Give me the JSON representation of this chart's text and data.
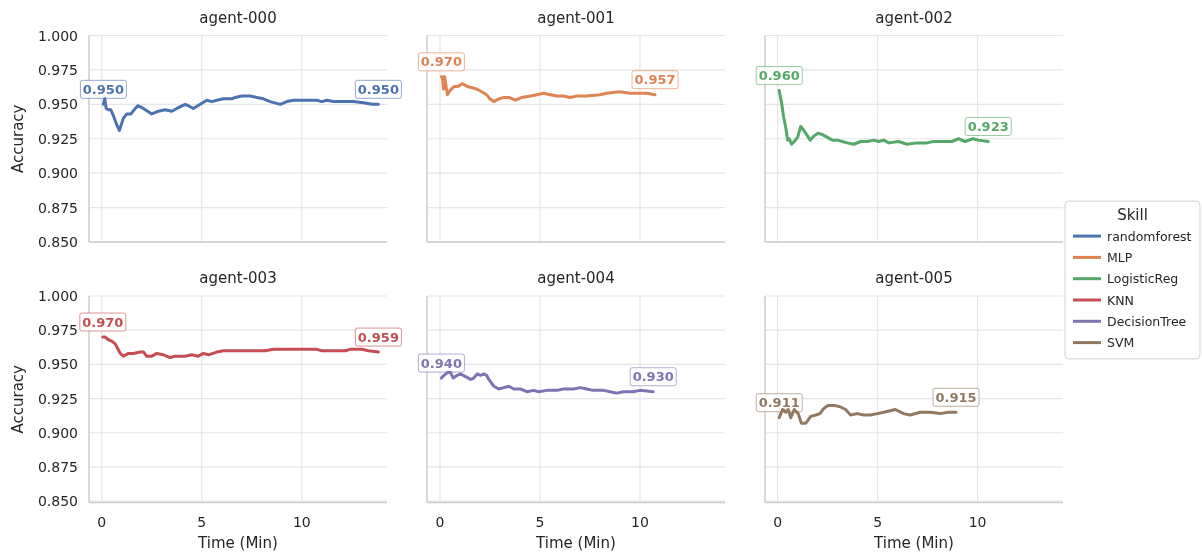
{
  "chart_data": [
    {
      "type": "line",
      "title": "agent-000",
      "ylabel": "Accuracy",
      "xlim": [
        -0.64,
        14.26
      ],
      "ylim": [
        0.85,
        1.0
      ],
      "xticks": [
        0,
        5,
        10
      ],
      "yticks": [
        {
          "value": 0.85,
          "label": "0.850"
        },
        {
          "value": 0.875,
          "label": "0.875"
        },
        {
          "value": 0.9,
          "label": "0.900"
        },
        {
          "value": 0.925,
          "label": "0.925"
        },
        {
          "value": 0.95,
          "label": "0.950"
        },
        {
          "value": 0.975,
          "label": "0.975"
        },
        {
          "value": 1.0,
          "label": "1.000"
        }
      ],
      "grid": true,
      "tick_labels": "y",
      "series": [
        {
          "name": "randomforest",
          "color": "#4c72b0",
          "x": [
            0.08,
            0.15,
            0.22,
            0.33,
            0.45,
            0.6,
            0.75,
            0.88,
            1.08,
            1.25,
            1.45,
            1.62,
            1.8,
            2.08,
            2.5,
            2.83,
            3.17,
            3.5,
            3.75,
            4.17,
            4.33,
            4.58,
            4.92,
            5.25,
            5.5,
            5.75,
            6.08,
            6.5,
            6.67,
            7.0,
            7.42,
            7.75,
            8.08,
            8.42,
            8.92,
            9.25,
            9.58,
            9.92,
            10.75,
            11.0,
            11.25,
            11.58,
            12.0,
            12.58,
            13.17,
            13.5,
            13.83
          ],
          "values": [
            0.95,
            0.954,
            0.947,
            0.946,
            0.946,
            0.941,
            0.935,
            0.931,
            0.94,
            0.943,
            0.943,
            0.946,
            0.949,
            0.947,
            0.943,
            0.945,
            0.946,
            0.945,
            0.947,
            0.95,
            0.949,
            0.947,
            0.95,
            0.953,
            0.952,
            0.953,
            0.954,
            0.954,
            0.955,
            0.956,
            0.956,
            0.955,
            0.954,
            0.952,
            0.95,
            0.952,
            0.953,
            0.953,
            0.953,
            0.952,
            0.953,
            0.952,
            0.952,
            0.952,
            0.951,
            0.95,
            0.95
          ],
          "value_labels": [
            "0.950",
            null,
            null,
            null,
            null,
            null,
            null,
            null,
            null,
            null,
            null,
            null,
            null,
            null,
            null,
            null,
            null,
            null,
            null,
            null,
            null,
            null,
            null,
            null,
            null,
            null,
            null,
            null,
            null,
            null,
            null,
            null,
            null,
            null,
            null,
            null,
            null,
            null,
            null,
            null,
            null,
            null,
            null,
            null,
            null,
            null,
            "0.950"
          ]
        }
      ]
    },
    {
      "type": "line",
      "title": "agent-001",
      "xlim": [
        -0.65,
        14.25
      ],
      "ylim": [
        0.85,
        1.0
      ],
      "xticks": [
        0,
        5,
        10
      ],
      "yticks": [
        0.85,
        0.875,
        0.9,
        0.925,
        0.95,
        0.975,
        1.0
      ],
      "grid": true,
      "tick_labels": false,
      "series": [
        {
          "name": "MLP",
          "color": "#dd8452",
          "x": [
            0.07,
            0.12,
            0.17,
            0.23,
            0.37,
            0.5,
            0.7,
            0.9,
            1.11,
            1.36,
            1.61,
            1.86,
            2.11,
            2.33,
            2.49,
            2.69,
            2.94,
            3.19,
            3.44,
            3.77,
            4.1,
            4.52,
            4.85,
            5.18,
            5.51,
            5.85,
            6.18,
            6.51,
            6.84,
            7.34,
            8.0,
            8.34,
            8.84,
            9.09,
            9.5,
            10.0,
            10.33,
            10.75
          ],
          "values": [
            0.97,
            0.97,
            0.961,
            0.97,
            0.957,
            0.96,
            0.963,
            0.963,
            0.965,
            0.963,
            0.962,
            0.961,
            0.959,
            0.957,
            0.954,
            0.952,
            0.954,
            0.955,
            0.955,
            0.953,
            0.955,
            0.956,
            0.957,
            0.958,
            0.957,
            0.956,
            0.956,
            0.955,
            0.956,
            0.956,
            0.957,
            0.958,
            0.959,
            0.959,
            0.958,
            0.958,
            0.958,
            0.957
          ],
          "value_labels": [
            "0.970",
            null,
            null,
            null,
            null,
            null,
            null,
            null,
            null,
            null,
            null,
            null,
            null,
            null,
            null,
            null,
            null,
            null,
            null,
            null,
            null,
            null,
            null,
            null,
            null,
            null,
            null,
            null,
            null,
            null,
            null,
            null,
            null,
            null,
            null,
            null,
            null,
            "0.957"
          ]
        }
      ]
    },
    {
      "type": "line",
      "title": "agent-002",
      "xlim": [
        -0.63,
        14.27
      ],
      "ylim": [
        0.85,
        1.0
      ],
      "xticks": [
        0,
        5,
        10
      ],
      "yticks": [
        0.85,
        0.875,
        0.9,
        0.925,
        0.95,
        0.975,
        1.0
      ],
      "grid": true,
      "tick_labels": false,
      "legend": "right",
      "legend_title": "Skill",
      "series": [
        {
          "name": "LogisticReg",
          "color": "#55a868",
          "x": [
            0.08,
            0.2,
            0.3,
            0.41,
            0.5,
            0.58,
            0.7,
            0.83,
            1.0,
            1.16,
            1.36,
            1.63,
            1.82,
            2.02,
            2.24,
            2.49,
            2.74,
            2.99,
            3.23,
            3.48,
            3.81,
            4.15,
            4.48,
            4.81,
            5.06,
            5.31,
            5.56,
            6.05,
            6.47,
            6.97,
            7.46,
            7.79,
            8.29,
            8.71,
            9.04,
            9.37,
            9.78,
            10.03,
            10.53
          ],
          "values": [
            0.96,
            0.951,
            0.941,
            0.933,
            0.924,
            0.925,
            0.921,
            0.923,
            0.926,
            0.934,
            0.93,
            0.924,
            0.927,
            0.929,
            0.928,
            0.926,
            0.924,
            0.924,
            0.923,
            0.922,
            0.921,
            0.923,
            0.923,
            0.924,
            0.923,
            0.924,
            0.922,
            0.923,
            0.921,
            0.922,
            0.922,
            0.923,
            0.923,
            0.923,
            0.925,
            0.923,
            0.925,
            0.924,
            0.923
          ],
          "value_labels": [
            "0.960",
            null,
            null,
            null,
            null,
            null,
            null,
            null,
            null,
            null,
            null,
            null,
            null,
            null,
            null,
            null,
            null,
            null,
            null,
            null,
            null,
            null,
            null,
            null,
            null,
            null,
            null,
            null,
            null,
            null,
            null,
            null,
            null,
            null,
            null,
            null,
            null,
            null,
            "0.923"
          ]
        }
      ]
    },
    {
      "type": "line",
      "title": "agent-003",
      "xlabel": "Time (Min)",
      "ylabel": "Accuracy",
      "xlim": [
        -0.64,
        14.26
      ],
      "ylim": [
        0.849,
        1.0
      ],
      "xticks": [
        0,
        5,
        10
      ],
      "yticks": [
        {
          "value": 0.85,
          "label": "0.850"
        },
        {
          "value": 0.875,
          "label": "0.875"
        },
        {
          "value": 0.9,
          "label": "0.900"
        },
        {
          "value": 0.925,
          "label": "0.925"
        },
        {
          "value": 0.95,
          "label": "0.950"
        },
        {
          "value": 0.975,
          "label": "0.975"
        },
        {
          "value": 1.0,
          "label": "1.000"
        }
      ],
      "grid": true,
      "series": [
        {
          "name": "KNN",
          "color": "#c44e52",
          "x": [
            0.05,
            0.17,
            0.33,
            0.5,
            0.67,
            0.78,
            0.92,
            1.08,
            1.33,
            1.58,
            1.92,
            2.08,
            2.25,
            2.5,
            2.75,
            3.08,
            3.42,
            3.67,
            3.92,
            4.17,
            4.5,
            4.83,
            5.08,
            5.33,
            5.75,
            6.08,
            6.58,
            6.92,
            7.42,
            7.92,
            8.17,
            8.58,
            9.58,
            10.75,
            11.0,
            11.25,
            12.17,
            12.42,
            13.0,
            13.33,
            13.83
          ],
          "values": [
            0.97,
            0.97,
            0.968,
            0.967,
            0.965,
            0.962,
            0.958,
            0.956,
            0.958,
            0.958,
            0.959,
            0.959,
            0.956,
            0.956,
            0.958,
            0.957,
            0.955,
            0.956,
            0.956,
            0.956,
            0.957,
            0.956,
            0.958,
            0.957,
            0.959,
            0.96,
            0.96,
            0.96,
            0.96,
            0.96,
            0.96,
            0.961,
            0.961,
            0.961,
            0.96,
            0.96,
            0.96,
            0.961,
            0.961,
            0.96,
            0.959
          ],
          "value_labels": [
            "0.970",
            null,
            null,
            null,
            null,
            null,
            null,
            null,
            null,
            null,
            null,
            null,
            null,
            null,
            null,
            null,
            null,
            null,
            null,
            null,
            null,
            null,
            null,
            null,
            null,
            null,
            null,
            null,
            null,
            null,
            null,
            null,
            null,
            null,
            null,
            null,
            null,
            null,
            null,
            null,
            "0.959"
          ]
        }
      ]
    },
    {
      "type": "line",
      "title": "agent-004",
      "xlabel": "Time (Min)",
      "xlim": [
        -0.65,
        14.25
      ],
      "ylim": [
        0.849,
        1.0
      ],
      "xticks": [
        0,
        5,
        10
      ],
      "yticks": [
        0.85,
        0.875,
        0.9,
        0.925,
        0.95,
        0.975,
        1.0
      ],
      "grid": true,
      "tick_labels": "x",
      "series": [
        {
          "name": "DecisionTree",
          "color": "#8172b3",
          "x": [
            0.07,
            0.2,
            0.37,
            0.53,
            0.66,
            0.86,
            1.03,
            1.28,
            1.53,
            1.69,
            1.86,
            2.03,
            2.19,
            2.33,
            2.44,
            2.69,
            2.94,
            3.19,
            3.44,
            3.69,
            4.02,
            4.35,
            4.68,
            4.93,
            5.35,
            5.85,
            6.18,
            6.68,
            7.01,
            7.34,
            7.67,
            8.17,
            8.5,
            8.84,
            9.17,
            9.67,
            10.0,
            10.66
          ],
          "values": [
            0.94,
            0.942,
            0.944,
            0.944,
            0.94,
            0.942,
            0.943,
            0.941,
            0.939,
            0.94,
            0.943,
            0.942,
            0.943,
            0.942,
            0.939,
            0.934,
            0.932,
            0.933,
            0.934,
            0.932,
            0.932,
            0.93,
            0.931,
            0.93,
            0.931,
            0.931,
            0.932,
            0.932,
            0.933,
            0.932,
            0.931,
            0.931,
            0.93,
            0.929,
            0.93,
            0.93,
            0.931,
            0.93
          ],
          "value_labels": [
            "0.940",
            null,
            null,
            null,
            null,
            null,
            null,
            null,
            null,
            null,
            null,
            null,
            null,
            null,
            null,
            null,
            null,
            null,
            null,
            null,
            null,
            null,
            null,
            null,
            null,
            null,
            null,
            null,
            null,
            null,
            null,
            null,
            null,
            null,
            null,
            null,
            null,
            "0.930"
          ]
        }
      ]
    },
    {
      "type": "line",
      "title": "agent-005",
      "xlabel": "Time (Min)",
      "xlim": [
        -0.63,
        14.27
      ],
      "ylim": [
        0.849,
        1.0
      ],
      "xticks": [
        0,
        5,
        10
      ],
      "yticks": [
        0.85,
        0.875,
        0.9,
        0.925,
        0.95,
        0.975,
        1.0
      ],
      "grid": true,
      "tick_labels": "x",
      "series": [
        {
          "name": "SVM",
          "color": "#937860",
          "x": [
            0.08,
            0.25,
            0.41,
            0.53,
            0.66,
            0.83,
            1.03,
            1.19,
            1.41,
            1.66,
            1.91,
            2.12,
            2.32,
            2.52,
            2.82,
            3.12,
            3.4,
            3.65,
            3.98,
            4.31,
            4.64,
            4.98,
            5.31,
            5.89,
            6.3,
            6.63,
            7.13,
            7.63,
            8.13,
            8.54,
            8.92
          ],
          "values": [
            0.911,
            0.917,
            0.915,
            0.917,
            0.911,
            0.917,
            0.914,
            0.907,
            0.907,
            0.912,
            0.913,
            0.914,
            0.918,
            0.92,
            0.92,
            0.919,
            0.917,
            0.913,
            0.914,
            0.913,
            0.913,
            0.914,
            0.915,
            0.917,
            0.914,
            0.913,
            0.915,
            0.915,
            0.914,
            0.915,
            0.915
          ],
          "value_labels": [
            "0.911",
            null,
            null,
            null,
            null,
            null,
            null,
            null,
            null,
            null,
            null,
            null,
            null,
            null,
            null,
            null,
            null,
            null,
            null,
            null,
            null,
            null,
            null,
            null,
            null,
            null,
            null,
            null,
            null,
            null,
            "0.915"
          ]
        }
      ]
    }
  ]
}
